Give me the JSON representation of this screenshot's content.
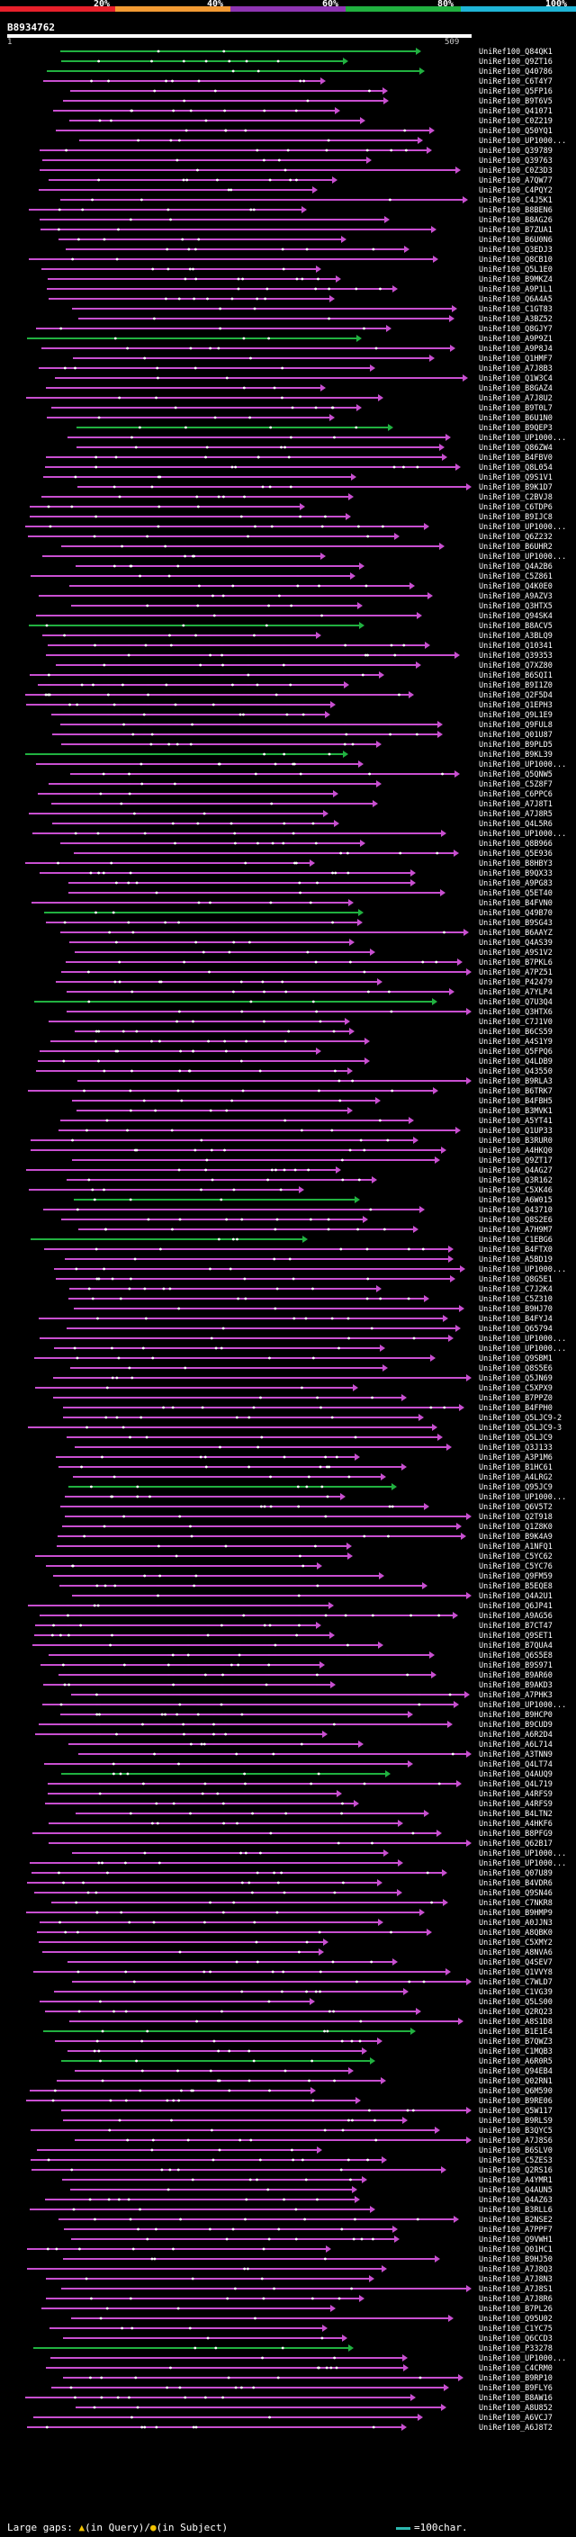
{
  "header": {
    "percent_labels": [
      "20%",
      "40%",
      "60%",
      "80%",
      "100%"
    ],
    "colors": {
      "red": "#e8202a",
      "orange": "#f29a33",
      "purple": "#8f35b3",
      "green": "#21b140",
      "cyan": "#1fb5d6",
      "magenta": "#d050c0",
      "query": "#ffffff"
    },
    "query_id": "B8934762",
    "ruler_start": "1",
    "ruler_end": "509"
  },
  "hits": [
    "UniRef100_Q84QK1",
    "UniRef100_Q9ZT16",
    "UniRef100_Q40786",
    "UniRef100_C6T4Y7",
    "UniRef100_Q5FP16",
    "UniRef100_B9T6V5",
    "UniRef100_Q41071",
    "UniRef100_C0Z219",
    "UniRef100_Q50YQ1",
    "UniRef100_UP1000...",
    "UniRef100_Q39789",
    "UniRef100_Q39763",
    "UniRef100_C0Z3D3",
    "UniRef100_A7QW77",
    "UniRef100_C4PQY2",
    "UniRef100_C4J5K1",
    "UniRef100_B8BEN6",
    "UniRef100_B8AG26",
    "UniRef100_B7ZUA1",
    "UniRef100_B6U0N6",
    "UniRef100_Q3EDJ3",
    "UniRef100_Q8CB10",
    "UniRef100_Q5L1E0",
    "UniRef100_B9MKZ4",
    "UniRef100_A9P1L1",
    "UniRef100_Q6A4A5",
    "UniRef100_C1GT83",
    "UniRef100_A3BZ52",
    "UniRef100_Q8GJY7",
    "UniRef100_A9P9Z1",
    "UniRef100_A9P8J4",
    "UniRef100_Q1HMF7",
    "UniRef100_A7J8B3",
    "UniRef100_Q1W3C4",
    "UniRef100_B8GAZ4",
    "UniRef100_A7J8U2",
    "UniRef100_B9T0L7",
    "UniRef100_B6U1N0",
    "UniRef100_B9QEP3",
    "UniRef100_UP1000...",
    "UniRef100_Q86ZW4",
    "UniRef100_B4FBV0",
    "UniRef100_Q8L054",
    "UniRef100_Q9S1V1",
    "UniRef100_B9K1D7",
    "UniRef100_C2BVJ8",
    "UniRef100_C6TDP6",
    "UniRef100_B9IJC8",
    "UniRef100_UP1000...",
    "UniRef100_Q6Z232",
    "UniRef100_B6UHR2",
    "UniRef100_UP1000...",
    "UniRef100_Q4A2B6",
    "UniRef100_C5Z861",
    "UniRef100_Q4K0E0",
    "UniRef100_A9AZV3",
    "UniRef100_Q3HTX5",
    "UniRef100_Q94SK4",
    "UniRef100_B8ACV5",
    "UniRef100_A3BLQ9",
    "UniRef100_Q10341",
    "UniRef100_Q39353",
    "UniRef100_Q7XZ80",
    "UniRef100_B6SQI1",
    "UniRef100_B9I1Z0",
    "UniRef100_Q2F5D4",
    "UniRef100_Q1EPH3",
    "UniRef100_Q9L1E9",
    "UniRef100_Q9FUL8",
    "UniRef100_Q01U87",
    "UniRef100_B9PLD5",
    "UniRef100_B9KL39",
    "UniRef100_UP1000...",
    "UniRef100_Q5QNW5",
    "UniRef100_C5Z8F7",
    "UniRef100_C6PPC6",
    "UniRef100_A7J8T1",
    "UniRef100_A7J8R5",
    "UniRef100_Q4L5R6",
    "UniRef100_UP1000...",
    "UniRef100_Q8B966",
    "UniRef100_Q5E936",
    "UniRef100_B8HBY3",
    "UniRef100_B9QX33",
    "UniRef100_A9PG83",
    "UniRef100_Q5ET40",
    "UniRef100_B4FVN0",
    "UniRef100_Q49B70",
    "UniRef100_B9SG43",
    "UniRef100_B6AAYZ",
    "UniRef100_Q4AS39",
    "UniRef100_A9S1V2",
    "UniRef100_B7PKL6",
    "UniRef100_A7PZ51",
    "UniRef100_P42479",
    "UniRef100_A7YLP4",
    "UniRef100_Q7U3Q4",
    "UniRef100_Q3HTX6",
    "UniRef100_C7J1V0",
    "UniRef100_B6CS59",
    "UniRef100_A4S1Y9",
    "UniRef100_Q5FPQ6",
    "UniRef100_Q4LDB9",
    "UniRef100_Q43550",
    "UniRef100_B9RLA3",
    "UniRef100_B6TRK7",
    "UniRef100_B4FBH5",
    "UniRef100_B3MVK1",
    "UniRef100_A5YT41",
    "UniRef100_Q1UP33",
    "UniRef100_B3RUR0",
    "UniRef100_A4HKQ0",
    "UniRef100_Q9ZT17",
    "UniRef100_Q4AG27",
    "UniRef100_Q3R162",
    "UniRef100_C5XK46",
    "UniRef100_A6W015",
    "UniRef100_Q43710",
    "UniRef100_Q8S2E6",
    "UniRef100_A7H9M7",
    "UniRef100_C1EBG6",
    "UniRef100_B4FTX0",
    "UniRef100_A5BD19",
    "UniRef100_UP1000...",
    "UniRef100_Q8G5E1",
    "UniRef100_C7J2K4",
    "UniRef100_C5Z310",
    "UniRef100_B9HJ70",
    "UniRef100_B4FYJ4",
    "UniRef100_Q65794",
    "UniRef100_UP1000...",
    "UniRef100_UP1000...",
    "UniRef100_Q9SBM1",
    "UniRef100_Q8S5E6",
    "UniRef100_Q5JN69",
    "UniRef100_C5XPX9",
    "UniRef100_B7PPZ0",
    "UniRef100_B4FPH0",
    "UniRef100_Q5LJC9-2",
    "UniRef100_Q5LJC9-3",
    "UniRef100_Q5LJC9",
    "UniRef100_Q3J133",
    "UniRef100_A3P1M6",
    "UniRef100_B1HC61",
    "UniRef100_A4LRG2",
    "UniRef100_Q95JC9",
    "UniRef100_UP1000...",
    "UniRef100_Q6V5T2",
    "UniRef100_Q2T918",
    "UniRef100_Q1Z8K0",
    "UniRef100_B9K4A9",
    "UniRef100_A1NFQ1",
    "UniRef100_C5YC62",
    "UniRef100_C5YC76",
    "UniRef100_Q9FM59",
    "UniRef100_B5EQE8",
    "UniRef100_Q4A2U1",
    "UniRef100_Q6JP41",
    "UniRef100_A9AG56",
    "UniRef100_B7CT47",
    "UniRef100_Q9SET1",
    "UniRef100_B7QUA4",
    "UniRef100_Q6S5E8",
    "UniRef100_B9S971",
    "UniRef100_B9AR60",
    "UniRef100_B9AKD3",
    "UniRef100_A7PHK3",
    "UniRef100_UP1000...",
    "UniRef100_B9HCP0",
    "UniRef100_B9CUD9",
    "UniRef100_A6R2D4",
    "UniRef100_A6L714",
    "UniRef100_A3TNN9",
    "UniRef100_Q4LT74",
    "UniRef100_Q4AUQ9",
    "UniRef100_Q4L719",
    "UniRef100_A4RFS9",
    "UniRef100_A4RFS9",
    "UniRef100_B4LTN2",
    "UniRef100_A4HKF6",
    "UniRef100_B8PFG9",
    "UniRef100_Q62B17",
    "UniRef100_UP1000...",
    "UniRef100_UP1000...",
    "UniRef100_Q07U89",
    "UniRef100_B4VDR6",
    "UniRef100_Q9SN46",
    "UniRef100_C7NKR8",
    "UniRef100_B9HMP9",
    "UniRef100_A0JJN3",
    "UniRef100_A8QBK0",
    "UniRef100_C5XMY2",
    "UniRef100_A8NVA6",
    "UniRef100_Q4SEV7",
    "UniRef100_Q1VVY8",
    "UniRef100_C7WLD7",
    "UniRef100_C1VG39",
    "UniRef100_Q5LS00",
    "UniRef100_Q2RQ23",
    "UniRef100_A8S1D8",
    "UniRef100_B1E1E4",
    "UniRef100_B7QWZ3",
    "UniRef100_C1MQB3",
    "UniRef100_A6R0R5",
    "UniRef100_Q94EB4",
    "UniRef100_Q02RN1",
    "UniRef100_Q6M590",
    "UniRef100_B9RE06",
    "UniRef100_Q5W117",
    "UniRef100_B9RLS9",
    "UniRef100_B3QYC5",
    "UniRef100_A7J8S6",
    "UniRef100_B6SLV0",
    "UniRef100_C5ZES3",
    "UniRef100_Q2RS16",
    "UniRef100_A4YMR1",
    "UniRef100_Q4AUN5",
    "UniRef100_Q4AZ63",
    "UniRef100_B3RLL6",
    "UniRef100_B2NSE2",
    "UniRef100_A7PPF7",
    "UniRef100_Q9VWH1",
    "UniRef100_Q01HC1",
    "UniRef100_B9HJ50",
    "UniRef100_A7J8Q3",
    "UniRef100_A7J8N3",
    "UniRef100_A7J8S1",
    "UniRef100_A7J8R6",
    "UniRef100_B7PL26",
    "UniRef100_Q95U02",
    "UniRef100_C1YC75",
    "UniRef100_Q6CCD3",
    "UniRef100_P33278",
    "UniRef100_UP1000...",
    "UniRef100_C4CRM0",
    "UniRef100_B9RP10",
    "UniRef100_B9FLY6",
    "UniRef100_B8AW16",
    "UniRef100_A8U852",
    "UniRef100_A6VCJ7",
    "UniRef100_A6J8T2"
  ],
  "footer": {
    "large_gaps": "Large gaps:",
    "gap_query_label": "(in Query)/",
    "gap_subject_label": "(in Subject)",
    "scale_label": "=100char."
  }
}
